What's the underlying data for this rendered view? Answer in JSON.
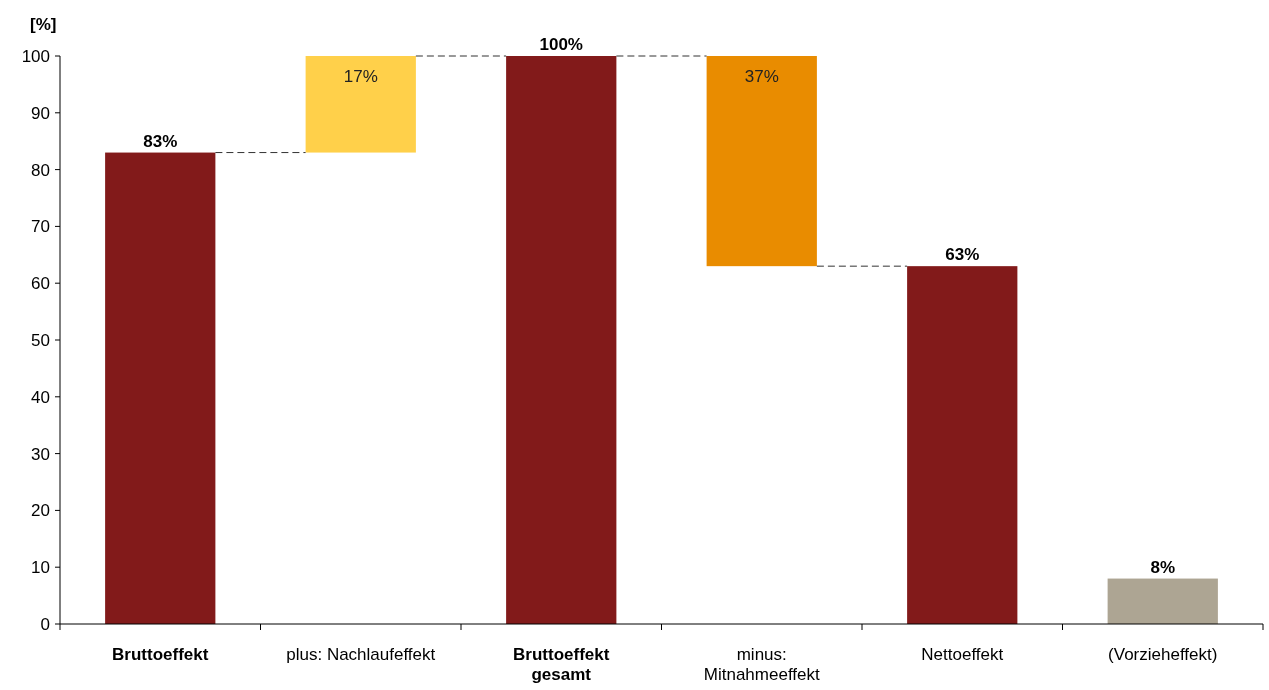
{
  "chart_data": {
    "type": "bar",
    "ylabel": "[%]",
    "categories": [
      "Bruttoeffekt",
      "plus: Nachlaufeffekt",
      "Bruttoeffekt gesamt",
      "minus: Mitnahmeeffekt",
      "Nettoeffekt",
      "(Vorzieheffekt)"
    ],
    "values": [
      83,
      17,
      100,
      37,
      63,
      8
    ],
    "base": [
      0,
      83,
      0,
      63,
      0,
      0
    ],
    "colors": [
      "#821a1a",
      "#ffd04a",
      "#821a1a",
      "#e98c00",
      "#821a1a",
      "#ada593"
    ],
    "value_labels": [
      "83%",
      "17%",
      "100%",
      "37%",
      "63%",
      "8%"
    ],
    "ylim": [
      0,
      100
    ],
    "yticks": [
      0,
      10,
      20,
      30,
      40,
      50,
      60,
      70,
      80,
      90,
      100
    ],
    "grid": false
  }
}
